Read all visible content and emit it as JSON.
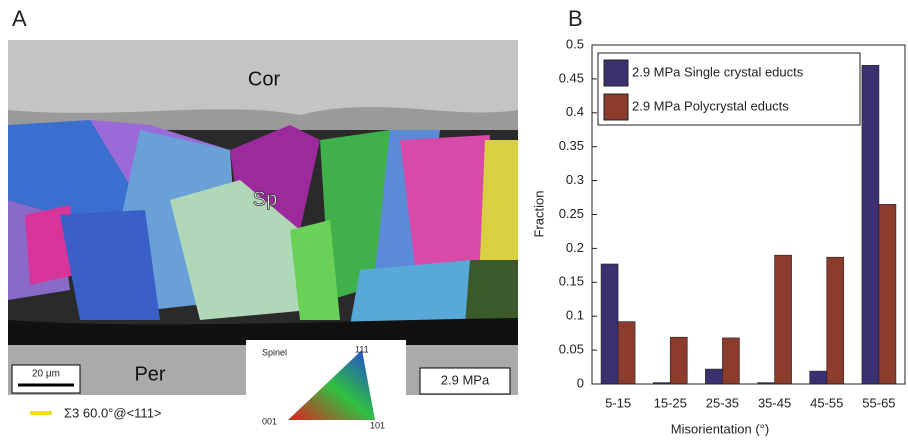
{
  "panel_a": {
    "label": "A",
    "phases": [
      "Cor",
      "Sp",
      "Per"
    ],
    "scale_bar": "20 μm",
    "pressure": "2.9 MPa",
    "boundary_legend": "Σ3  60.0°@<111>",
    "color_key": {
      "title": "Spinel",
      "top": "111",
      "left": "001",
      "right": "101"
    }
  },
  "chart_data": {
    "type": "bar",
    "panel_label": "B",
    "x_label": "Misorientation (°)",
    "y_label": "Fraction",
    "categories": [
      "5-15",
      "15-25",
      "25-35",
      "35-45",
      "45-55",
      "55-65"
    ],
    "series": [
      {
        "name": "2.9 MPa Single crystal educts",
        "color": "#3b3070",
        "values": [
          0.177,
          0.002,
          0.022,
          0.002,
          0.019,
          0.47
        ]
      },
      {
        "name": "2.9 MPa Polycrystal educts",
        "color": "#8c3c2c",
        "values": [
          0.092,
          0.069,
          0.068,
          0.19,
          0.187,
          0.265
        ]
      }
    ],
    "ylim": [
      0,
      0.5
    ],
    "yticks": [
      0,
      0.05,
      0.1,
      0.15,
      0.2,
      0.25,
      0.3,
      0.35,
      0.4,
      0.45,
      0.5
    ],
    "legend": "top-left"
  }
}
